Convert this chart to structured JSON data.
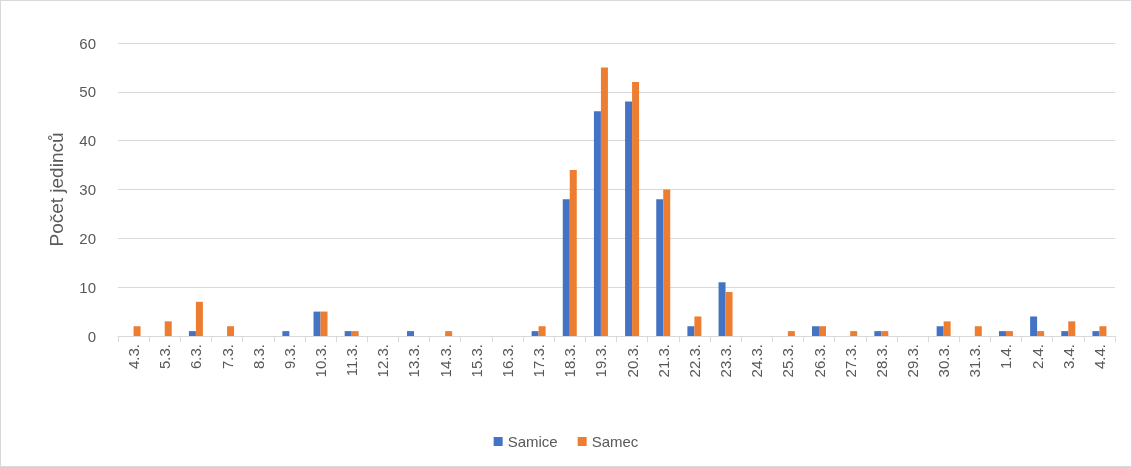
{
  "chart_data": {
    "type": "bar",
    "ylabel": "Počet jedinců",
    "categories": [
      "4.3.",
      "5.3.",
      "6.3.",
      "7.3.",
      "8.3.",
      "9.3.",
      "10.3.",
      "11.3.",
      "12.3.",
      "13.3.",
      "14.3.",
      "15.3.",
      "16.3.",
      "17.3.",
      "18.3.",
      "19.3.",
      "20.3.",
      "21.3.",
      "22.3.",
      "23.3.",
      "24.3.",
      "25.3.",
      "26.3.",
      "27.3.",
      "28.3.",
      "29.3.",
      "30.3.",
      "31.3.",
      "1.4.",
      "2.4.",
      "3.4.",
      "4.4."
    ],
    "series": [
      {
        "name": "Samice",
        "color": "#4472c4",
        "values": [
          0,
          0,
          1,
          0,
          0,
          1,
          5,
          1,
          0,
          1,
          0,
          0,
          0,
          1,
          28,
          46,
          48,
          28,
          2,
          11,
          0,
          0,
          2,
          0,
          1,
          0,
          2,
          0,
          1,
          4,
          1,
          1
        ]
      },
      {
        "name": "Samec",
        "color": "#ed7d31",
        "values": [
          2,
          3,
          7,
          2,
          0,
          0,
          5,
          1,
          0,
          0,
          1,
          0,
          0,
          2,
          34,
          55,
          52,
          30,
          4,
          9,
          0,
          1,
          2,
          1,
          1,
          0,
          3,
          2,
          1,
          1,
          3,
          2
        ]
      }
    ],
    "ylim": [
      0,
      60
    ],
    "yticks": [
      0,
      10,
      20,
      30,
      40,
      50,
      60
    ],
    "grid": "y",
    "legend": "bottom"
  }
}
